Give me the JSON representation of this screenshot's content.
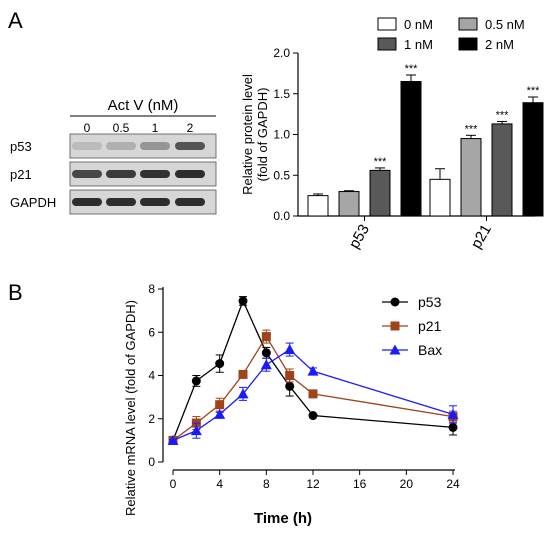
{
  "panel_labels": {
    "a": "A",
    "b": "B"
  },
  "blot": {
    "title": "Act V (nM)",
    "lanes": [
      "0",
      "0.5",
      "1",
      "2"
    ],
    "rows": [
      "p53",
      "p21",
      "GAPDH"
    ],
    "band_intensity": [
      [
        0.2,
        0.28,
        0.45,
        0.75
      ],
      [
        0.8,
        0.85,
        0.88,
        0.9
      ],
      [
        0.9,
        0.9,
        0.9,
        0.9
      ]
    ]
  },
  "chart_data": [
    {
      "type": "bar",
      "categories": [
        "p53",
        "p21"
      ],
      "series": [
        {
          "name": "0 nM",
          "values": [
            0.25,
            0.45
          ],
          "errors": [
            0.02,
            0.13
          ],
          "sig": [
            "",
            ""
          ],
          "color": "#ffffff"
        },
        {
          "name": "0.5 nM",
          "values": [
            0.3,
            0.95
          ],
          "errors": [
            0.01,
            0.04
          ],
          "sig": [
            "",
            "***"
          ],
          "color": "#a6a6a6"
        },
        {
          "name": "1 nM",
          "values": [
            0.56,
            1.13
          ],
          "errors": [
            0.03,
            0.03
          ],
          "sig": [
            "***",
            "***"
          ],
          "color": "#595959"
        },
        {
          "name": "2 nM",
          "values": [
            1.65,
            1.39
          ],
          "errors": [
            0.08,
            0.07
          ],
          "sig": [
            "***",
            "***"
          ],
          "color": "#000000"
        }
      ],
      "ylabel_lines": [
        "Relative protein level",
        "(fold of GAPDH)"
      ],
      "ylim": [
        0,
        2.0
      ],
      "yticks": [
        "0.0",
        "0.5",
        "1.0",
        "1.5",
        "2.0"
      ],
      "legend_position": "top"
    },
    {
      "type": "line",
      "xlabel": "Time (h)",
      "ylabel": "Relative mRNA  level (fold of GAPDH)",
      "xlim": [
        0,
        24
      ],
      "ylim": [
        0,
        8
      ],
      "xticks": [
        "0",
        "4",
        "8",
        "12",
        "16",
        "20",
        "24"
      ],
      "yticks": [
        "0",
        "2",
        "4",
        "6",
        "8"
      ],
      "legend_position": "top-right",
      "series": [
        {
          "name": "p53",
          "marker": "circle",
          "color": "#000000",
          "x": [
            0,
            2,
            4,
            6,
            8,
            10,
            12,
            24
          ],
          "y": [
            1.0,
            3.75,
            4.55,
            7.45,
            5.05,
            3.5,
            2.15,
            1.6
          ],
          "err": [
            0.1,
            0.25,
            0.4,
            0.2,
            0.25,
            0.45,
            0.05,
            0.35
          ]
        },
        {
          "name": "p21",
          "marker": "square",
          "color": "#a0421a",
          "x": [
            0,
            2,
            4,
            6,
            8,
            10,
            12,
            24
          ],
          "y": [
            1.0,
            1.8,
            2.65,
            4.05,
            5.8,
            4.0,
            3.15,
            2.1
          ],
          "err": [
            0.05,
            0.3,
            0.3,
            0.1,
            0.3,
            0.3,
            0.1,
            0.25
          ]
        },
        {
          "name": "Bax",
          "marker": "triangle",
          "color": "#1a1aff",
          "x": [
            0,
            2,
            4,
            6,
            8,
            10,
            12,
            24
          ],
          "y": [
            1.0,
            1.45,
            2.2,
            3.15,
            4.5,
            5.2,
            4.2,
            2.2
          ],
          "err": [
            0.05,
            0.35,
            0.1,
            0.3,
            0.3,
            0.3,
            0.15,
            0.4
          ]
        }
      ]
    }
  ]
}
